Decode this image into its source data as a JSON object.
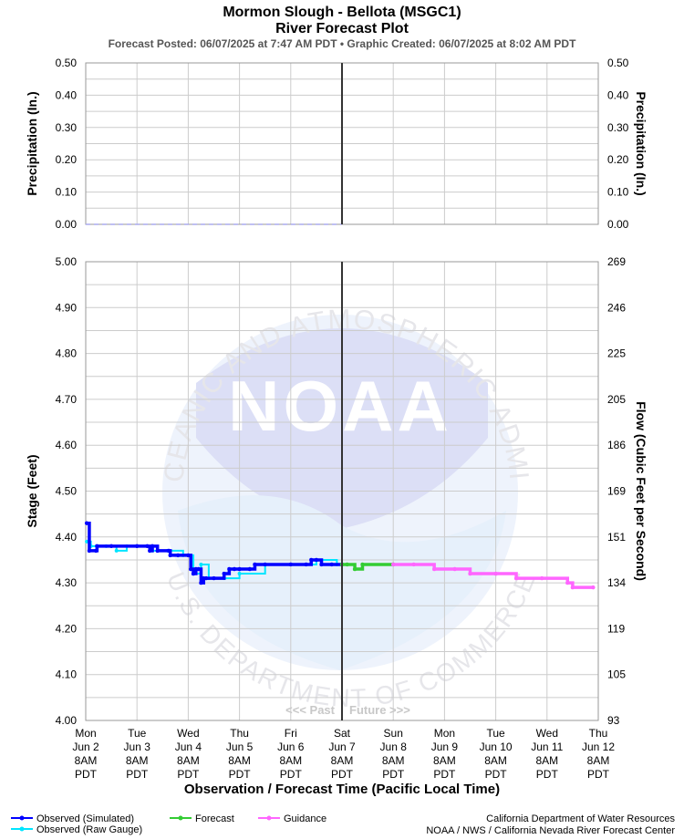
{
  "header": {
    "title_line1": "Mormon Slough - Bellota (MSGC1)",
    "title_line2": "River Forecast Plot",
    "subtitle": "Forecast Posted: 06/07/2025 at 7:47 AM PDT  •  Graphic Created: 06/07/2025 at 8:02 AM PDT"
  },
  "watermark": {
    "text": "NOAA",
    "ring_text": "NATIONAL OCEANIC AND ATMOSPHERIC ADMINISTRATION",
    "ring_text_bottom": "U.S. DEPARTMENT OF COMMERCE"
  },
  "past_future": {
    "past": "<<< Past",
    "future": "Future >>>"
  },
  "x_axis_label": "Observation / Forecast Time (Pacific Local Time)",
  "legend": [
    {
      "label": "Observed (Simulated)",
      "color": "#0000ff"
    },
    {
      "label": "Observed (Raw Gauge)",
      "color": "#00e5ff"
    },
    {
      "label": "Forecast",
      "color": "#33cc33"
    },
    {
      "label": "Guidance",
      "color": "#ff66ff"
    }
  ],
  "credits": {
    "line1": "California Department of Water Resources",
    "line2": "NOAA / NWS / California Nevada River Forecast Center"
  },
  "colors": {
    "observed_simulated": "#0000ff",
    "observed_raw": "#00e5ff",
    "forecast": "#33cc33",
    "guidance": "#ff66ff",
    "precip": "#aaaaee",
    "now_line": "#333333",
    "grid": "#cccccc"
  },
  "chart_data": [
    {
      "type": "line",
      "title": "",
      "ylabel": "Precipitation (In.)",
      "ylabel_right": "Precipitation (In.)",
      "ylim": [
        0,
        0.5
      ],
      "yticks": [
        "0.00",
        "0.10",
        "0.20",
        "0.30",
        "0.40",
        "0.50"
      ],
      "x_range_days": [
        "Jun 2 8AM",
        "Jun 12 8AM"
      ],
      "series": [
        {
          "name": "",
          "style": "dashed",
          "x": [
            0,
            5
          ],
          "values": [
            0,
            0
          ]
        }
      ]
    },
    {
      "type": "line",
      "ylabel": "Stage (Feet)",
      "ylabel_right": "Flow (Cubic Feet per Second)",
      "ylim": [
        4.0,
        5.0
      ],
      "yticks": [
        "4.00",
        "4.10",
        "4.20",
        "4.30",
        "4.40",
        "4.50",
        "4.60",
        "4.70",
        "4.80",
        "4.90",
        "5.00"
      ],
      "yticks_right": [
        "93",
        "105",
        "119",
        "134",
        "151",
        "169",
        "186",
        "205",
        "225",
        "246",
        "269"
      ],
      "xticks": [
        {
          "day": "Mon",
          "date": "Jun 2",
          "time": "8AM",
          "tz": "PDT"
        },
        {
          "day": "Tue",
          "date": "Jun 3",
          "time": "8AM",
          "tz": "PDT"
        },
        {
          "day": "Wed",
          "date": "Jun 4",
          "time": "8AM",
          "tz": "PDT"
        },
        {
          "day": "Thu",
          "date": "Jun 5",
          "time": "8AM",
          "tz": "PDT"
        },
        {
          "day": "Fri",
          "date": "Jun 6",
          "time": "8AM",
          "tz": "PDT"
        },
        {
          "day": "Sat",
          "date": "Jun 7",
          "time": "8AM",
          "tz": "PDT"
        },
        {
          "day": "Sun",
          "date": "Jun 8",
          "time": "8AM",
          "tz": "PDT"
        },
        {
          "day": "Mon",
          "date": "Jun 9",
          "time": "8AM",
          "tz": "PDT"
        },
        {
          "day": "Tue",
          "date": "Jun 10",
          "time": "8AM",
          "tz": "PDT"
        },
        {
          "day": "Wed",
          "date": "Jun 11",
          "time": "8AM",
          "tz": "PDT"
        },
        {
          "day": "Thu",
          "date": "Jun 12",
          "time": "8AM",
          "tz": "PDT"
        }
      ],
      "now": 5,
      "x_units": "days since Jun 2 8AM PDT",
      "series": [
        {
          "name": "Observed (Simulated)",
          "x": [
            0.02,
            0.07,
            0.2,
            0.22,
            0.5,
            1.0,
            1.2,
            1.25,
            1.3,
            1.4,
            1.62,
            1.65,
            1.8,
            2.0,
            2.05,
            2.1,
            2.15,
            2.2,
            2.25,
            2.3,
            2.35,
            2.5,
            2.7,
            2.8,
            2.9,
            3.0,
            3.2,
            3.3,
            3.5,
            4.0,
            4.3,
            4.4,
            4.5,
            4.6,
            4.8,
            5.0
          ],
          "values": [
            4.43,
            4.37,
            4.37,
            4.38,
            4.38,
            4.38,
            4.38,
            4.37,
            4.38,
            4.37,
            4.37,
            4.36,
            4.36,
            4.36,
            4.33,
            4.32,
            4.33,
            4.33,
            4.3,
            4.31,
            4.31,
            4.31,
            4.32,
            4.33,
            4.33,
            4.33,
            4.33,
            4.34,
            4.34,
            4.34,
            4.34,
            4.35,
            4.35,
            4.34,
            4.34,
            4.34
          ]
        },
        {
          "name": "Observed (Raw Gauge)",
          "x": [
            0.02,
            0.1,
            0.4,
            0.6,
            0.8,
            1.0,
            1.3,
            1.6,
            1.9,
            2.1,
            2.25,
            2.4,
            2.7,
            3.0,
            3.5,
            4.0,
            4.5,
            4.9
          ],
          "values": [
            4.39,
            4.38,
            4.38,
            4.37,
            4.38,
            4.38,
            4.37,
            4.37,
            4.36,
            4.32,
            4.34,
            4.31,
            4.31,
            4.32,
            4.34,
            4.34,
            4.35,
            4.34
          ]
        },
        {
          "name": "Forecast",
          "x": [
            5.0,
            5.1,
            5.25,
            5.4,
            6.0
          ],
          "values": [
            4.34,
            4.34,
            4.33,
            4.34,
            4.34
          ]
        },
        {
          "name": "Guidance",
          "x": [
            6.0,
            6.4,
            6.8,
            7.2,
            7.5,
            8.0,
            8.4,
            8.9,
            9.4,
            9.5,
            9.9
          ],
          "values": [
            4.34,
            4.34,
            4.33,
            4.33,
            4.32,
            4.32,
            4.31,
            4.31,
            4.3,
            4.29,
            4.29
          ]
        }
      ]
    }
  ]
}
